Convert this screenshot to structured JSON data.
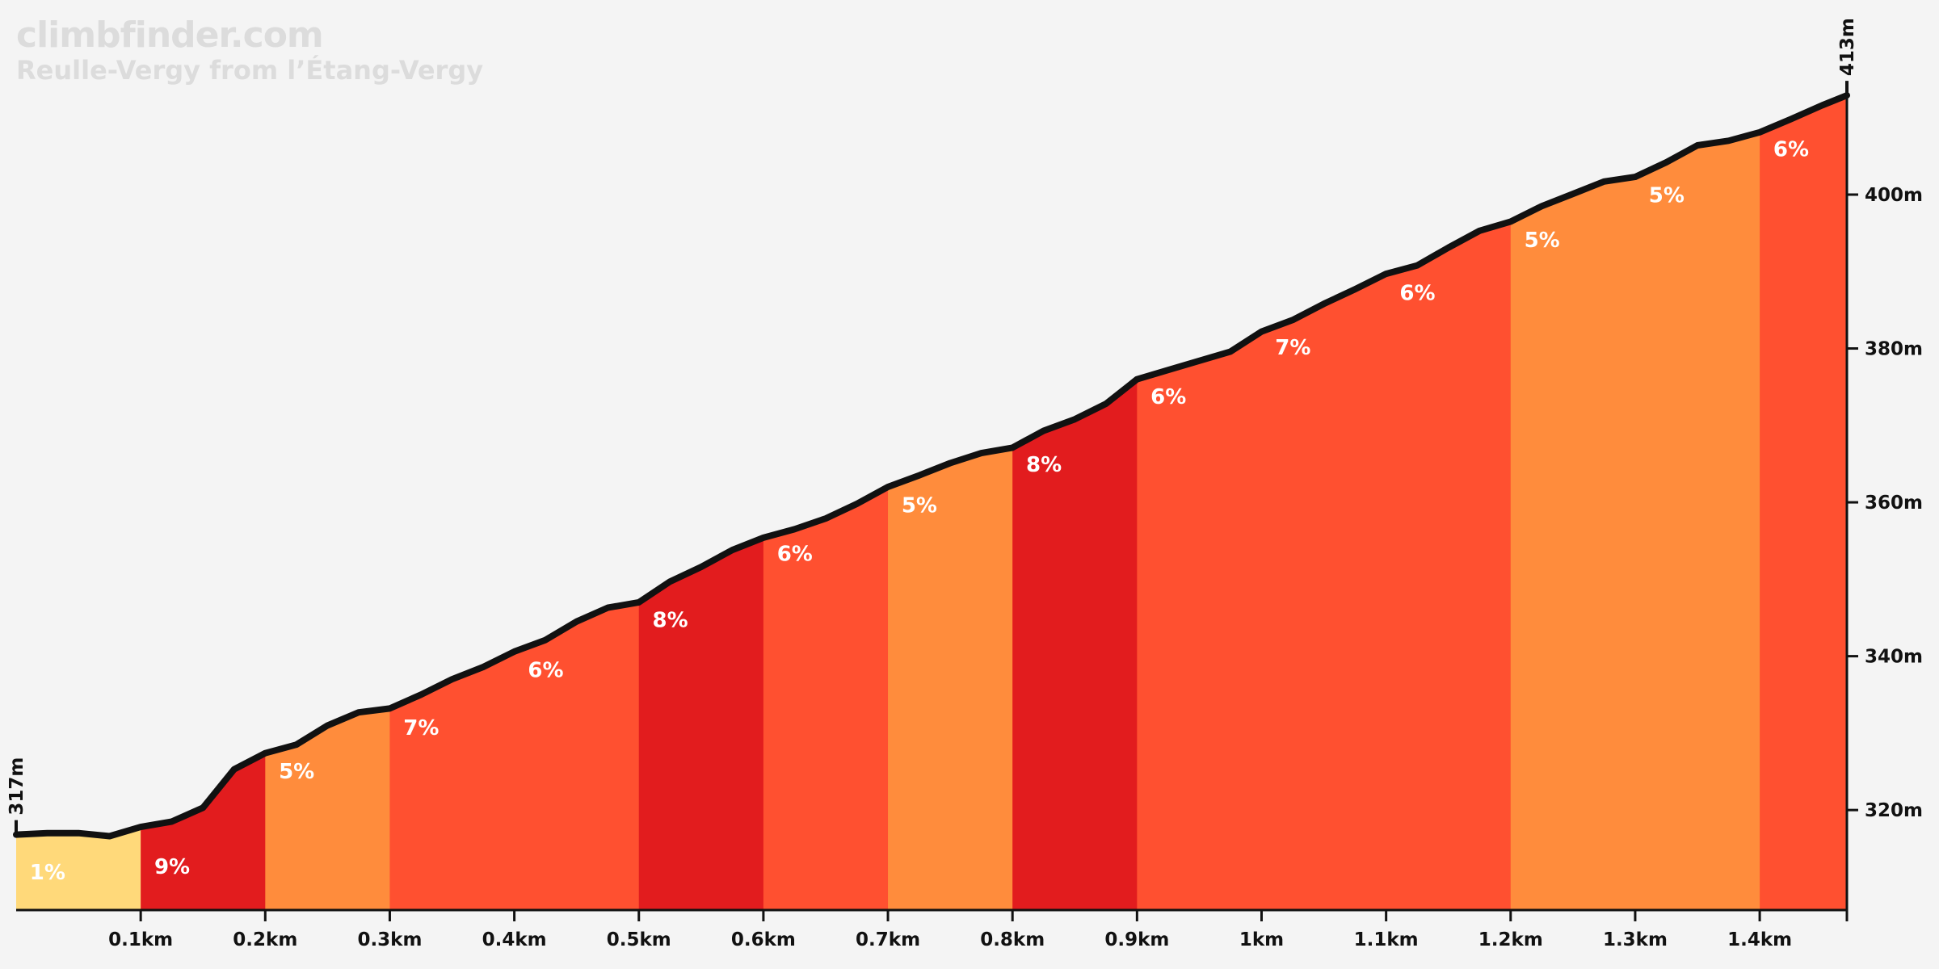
{
  "header": {
    "brand": "climbfinder.com",
    "subtitle": "Reulle-Vergy from l’Étang-Vergy"
  },
  "colors": {
    "1": "#ffd97a",
    "5": "#ff8c3c",
    "6": "#ff5030",
    "7": "#ff5030",
    "8": "#e21c1e",
    "9": "#e21c1e",
    "line": "#111111",
    "background": "#f4f4f4"
  },
  "chart_data": {
    "type": "area",
    "title": "",
    "xlabel": "",
    "ylabel": "",
    "x_unit": "km",
    "y_unit": "m",
    "xlim": [
      0,
      1.47
    ],
    "ylim": [
      307,
      419
    ],
    "start_label": "317m",
    "end_label": "413m",
    "x_ticks": [
      "0.1km",
      "0.2km",
      "0.3km",
      "0.4km",
      "0.5km",
      "0.6km",
      "0.7km",
      "0.8km",
      "0.9km",
      "1km",
      "1.1km",
      "1.2km",
      "1.3km",
      "1.4km"
    ],
    "y_ticks": [
      "320m",
      "340m",
      "360m",
      "380m",
      "400m"
    ],
    "profile": [
      [
        0,
        316.8
      ],
      [
        0.025,
        317.0
      ],
      [
        0.05,
        317.0
      ],
      [
        0.075,
        316.6
      ],
      [
        0.1,
        317.8
      ],
      [
        0.125,
        318.5
      ],
      [
        0.15,
        320.3
      ],
      [
        0.175,
        325.3
      ],
      [
        0.2,
        327.4
      ],
      [
        0.225,
        328.5
      ],
      [
        0.25,
        331.0
      ],
      [
        0.275,
        332.7
      ],
      [
        0.3,
        333.2
      ],
      [
        0.325,
        335.0
      ],
      [
        0.35,
        337.0
      ],
      [
        0.375,
        338.6
      ],
      [
        0.4,
        340.6
      ],
      [
        0.425,
        342.1
      ],
      [
        0.45,
        344.5
      ],
      [
        0.475,
        346.3
      ],
      [
        0.5,
        347.0
      ],
      [
        0.525,
        349.7
      ],
      [
        0.55,
        351.6
      ],
      [
        0.575,
        353.8
      ],
      [
        0.6,
        355.4
      ],
      [
        0.625,
        356.5
      ],
      [
        0.65,
        357.9
      ],
      [
        0.675,
        359.8
      ],
      [
        0.7,
        362.0
      ],
      [
        0.725,
        363.5
      ],
      [
        0.75,
        365.1
      ],
      [
        0.775,
        366.4
      ],
      [
        0.8,
        367.1
      ],
      [
        0.825,
        369.3
      ],
      [
        0.85,
        370.8
      ],
      [
        0.875,
        372.8
      ],
      [
        0.9,
        376.0
      ],
      [
        0.925,
        377.2
      ],
      [
        0.95,
        378.4
      ],
      [
        0.975,
        379.6
      ],
      [
        1.0,
        382.2
      ],
      [
        1.025,
        383.7
      ],
      [
        1.05,
        385.8
      ],
      [
        1.075,
        387.7
      ],
      [
        1.1,
        389.7
      ],
      [
        1.125,
        390.8
      ],
      [
        1.15,
        393.1
      ],
      [
        1.175,
        395.3
      ],
      [
        1.2,
        396.5
      ],
      [
        1.225,
        398.5
      ],
      [
        1.25,
        400.1
      ],
      [
        1.275,
        401.7
      ],
      [
        1.3,
        402.3
      ],
      [
        1.325,
        404.2
      ],
      [
        1.35,
        406.4
      ],
      [
        1.375,
        407.0
      ],
      [
        1.4,
        408.1
      ],
      [
        1.425,
        409.8
      ],
      [
        1.45,
        411.6
      ],
      [
        1.47,
        412.9
      ]
    ],
    "segments": [
      {
        "start": 0.0,
        "end": 0.1,
        "grade": "1%"
      },
      {
        "start": 0.1,
        "end": 0.2,
        "grade": "9%"
      },
      {
        "start": 0.2,
        "end": 0.3,
        "grade": "5%"
      },
      {
        "start": 0.3,
        "end": 0.5,
        "grade": "7%"
      },
      {
        "start": 0.5,
        "end": 0.6,
        "grade": "8%"
      },
      {
        "start": 0.6,
        "end": 0.7,
        "grade": "6%"
      },
      {
        "start": 0.7,
        "end": 0.8,
        "grade": "5%"
      },
      {
        "start": 0.8,
        "end": 0.9,
        "grade": "8%"
      },
      {
        "start": 0.9,
        "end": 1.2,
        "grade": "6%"
      },
      {
        "start": 1.2,
        "end": 1.4,
        "grade": "5%"
      },
      {
        "start": 1.4,
        "end": 1.47,
        "grade": "6%"
      }
    ],
    "grade_labels": [
      {
        "text": "1%",
        "x": 0.007,
        "y": 311.0
      },
      {
        "text": "9%",
        "x": 0.107,
        "y": 311.7
      },
      {
        "text": "5%",
        "x": 0.207,
        "y": 324.1
      },
      {
        "text": "7%",
        "x": 0.307,
        "y": 329.8
      },
      {
        "text": "6%",
        "x": 0.407,
        "y": 337.3
      },
      {
        "text": "8%",
        "x": 0.507,
        "y": 343.8
      },
      {
        "text": "6%",
        "x": 0.607,
        "y": 352.4
      },
      {
        "text": "5%",
        "x": 0.707,
        "y": 358.7
      },
      {
        "text": "8%",
        "x": 0.807,
        "y": 364.0
      },
      {
        "text": "6%",
        "x": 0.907,
        "y": 372.8
      },
      {
        "text": "7%",
        "x": 1.007,
        "y": 379.2
      },
      {
        "text": "6%",
        "x": 1.107,
        "y": 386.3
      },
      {
        "text": "5%",
        "x": 1.207,
        "y": 393.2
      },
      {
        "text": "5%",
        "x": 1.307,
        "y": 399.0
      },
      {
        "text": "6%",
        "x": 1.407,
        "y": 405.0
      }
    ]
  }
}
